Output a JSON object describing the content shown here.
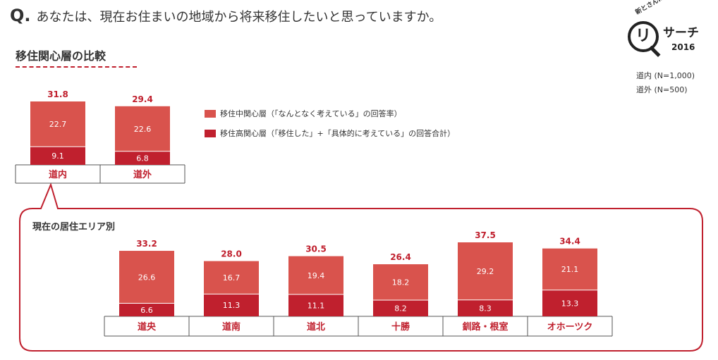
{
  "question": {
    "mark": "Q.",
    "text": "あなたは、現在お住まいの地域から将来移住したいと思っていますか。"
  },
  "section_title": "移住関心層の比較",
  "logo": {
    "tag": "新とさんに",
    "ri": "リ",
    "search": "サーチ",
    "year": "2016"
  },
  "sample_note": [
    "道内 (N=1,000)",
    "道外 (N=500)"
  ],
  "legend": [
    {
      "label": "移住中関心層（「なんとなく考えている」の回答率）",
      "color": "#d9534d"
    },
    {
      "label": "移住高関心層（「移住した」+「具体的に考えている」の回答合計）",
      "color": "#c0202e"
    }
  ],
  "colors": {
    "middle": "#d9534d",
    "high": "#c0202e",
    "border": "#c0202e"
  },
  "chart_data": [
    {
      "type": "bar",
      "stacked": true,
      "categories": [
        "道内",
        "道外"
      ],
      "totals": [
        "31.8",
        "29.4"
      ],
      "series": [
        {
          "values": [
            9.1,
            6.8
          ],
          "labels": [
            "9.1",
            "6.8"
          ]
        },
        {
          "values": [
            22.7,
            22.6
          ],
          "labels": [
            "22.7",
            "22.6"
          ]
        }
      ]
    },
    {
      "type": "bar",
      "stacked": true,
      "title": "現在の居住エリア別",
      "categories": [
        "道央",
        "道南",
        "道北",
        "十勝",
        "釧路・根室",
        "オホーツク"
      ],
      "totals": [
        "33.2",
        "28.0",
        "30.5",
        "26.4",
        "37.5",
        "34.4"
      ],
      "series": [
        {
          "values": [
            6.6,
            11.3,
            11.1,
            8.2,
            8.3,
            13.3
          ],
          "labels": [
            "6.6",
            "11.3",
            "11.1",
            "8.2",
            "8.3",
            "13.3"
          ]
        },
        {
          "values": [
            26.6,
            16.7,
            19.4,
            18.2,
            29.2,
            21.1
          ],
          "labels": [
            "26.6",
            "16.7",
            "19.4",
            "18.2",
            "29.2",
            "21.1"
          ]
        }
      ]
    }
  ]
}
